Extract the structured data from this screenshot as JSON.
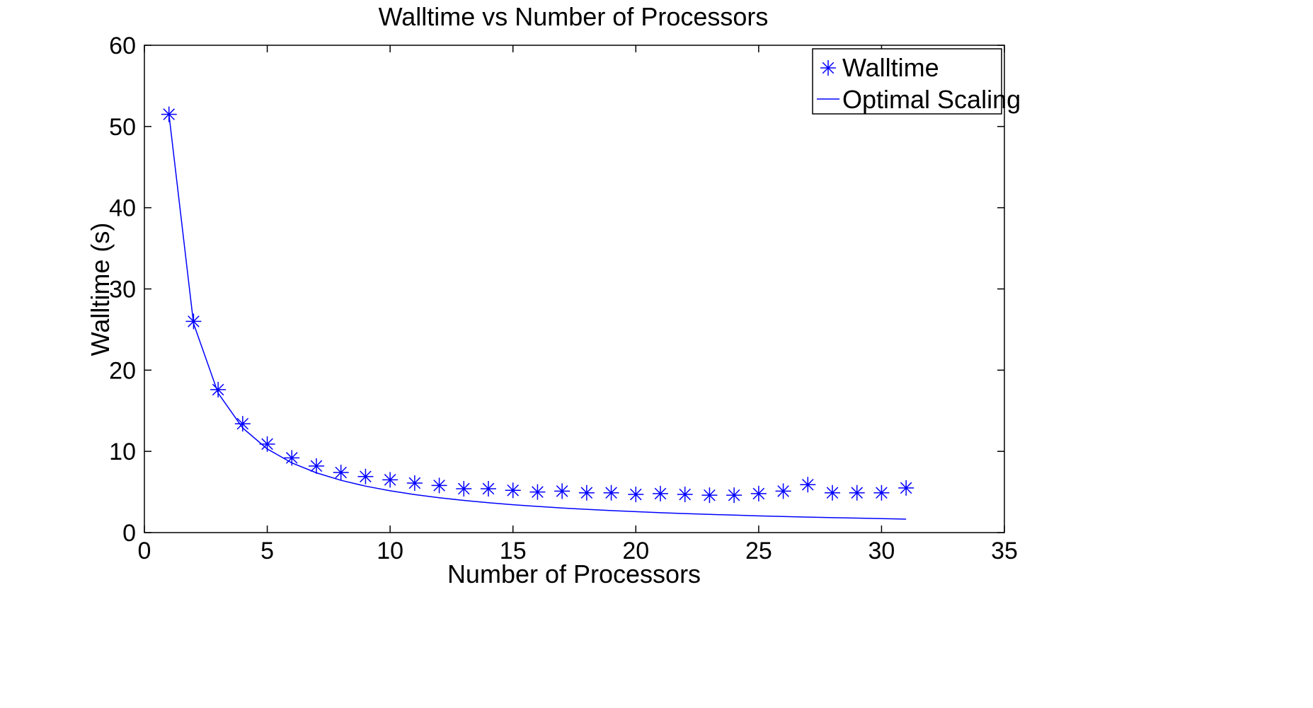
{
  "chart_data": {
    "type": "scatter",
    "title": "Walltime vs Number of Processors",
    "xlabel": "Number of Processors",
    "ylabel": "Walltime (s)",
    "xlim": [
      0,
      35
    ],
    "ylim": [
      0,
      60
    ],
    "xticks": [
      0,
      5,
      10,
      15,
      20,
      25,
      30,
      35
    ],
    "yticks": [
      0,
      10,
      20,
      30,
      40,
      50,
      60
    ],
    "grid": false,
    "legend_position": "top-right",
    "color": "#0000ff",
    "series": [
      {
        "name": "Walltime",
        "marker": "asterisk",
        "x": [
          1,
          2,
          3,
          4,
          5,
          6,
          7,
          8,
          9,
          10,
          11,
          12,
          13,
          14,
          15,
          16,
          17,
          18,
          19,
          20,
          21,
          22,
          23,
          24,
          25,
          26,
          27,
          28,
          29,
          30,
          31
        ],
        "y": [
          51.5,
          26.0,
          17.6,
          13.4,
          10.9,
          9.2,
          8.2,
          7.4,
          6.9,
          6.5,
          6.1,
          5.8,
          5.4,
          5.4,
          5.2,
          5.0,
          5.1,
          4.9,
          4.9,
          4.7,
          4.8,
          4.7,
          4.6,
          4.6,
          4.8,
          5.1,
          5.9,
          4.9,
          4.9,
          4.9,
          5.5
        ]
      },
      {
        "name": "Optimal Scaling",
        "marker": "line",
        "x": [
          1,
          2,
          3,
          4,
          5,
          6,
          7,
          8,
          9,
          10,
          11,
          12,
          13,
          14,
          15,
          16,
          17,
          18,
          19,
          20,
          21,
          22,
          23,
          24,
          25,
          26,
          27,
          28,
          29,
          30,
          31
        ],
        "y": [
          51.5,
          25.75,
          17.17,
          12.88,
          10.3,
          8.58,
          7.36,
          6.44,
          5.72,
          5.15,
          4.68,
          4.29,
          3.96,
          3.68,
          3.43,
          3.22,
          3.03,
          2.86,
          2.71,
          2.58,
          2.45,
          2.34,
          2.24,
          2.15,
          2.06,
          1.98,
          1.91,
          1.84,
          1.78,
          1.72,
          1.66
        ]
      }
    ]
  }
}
